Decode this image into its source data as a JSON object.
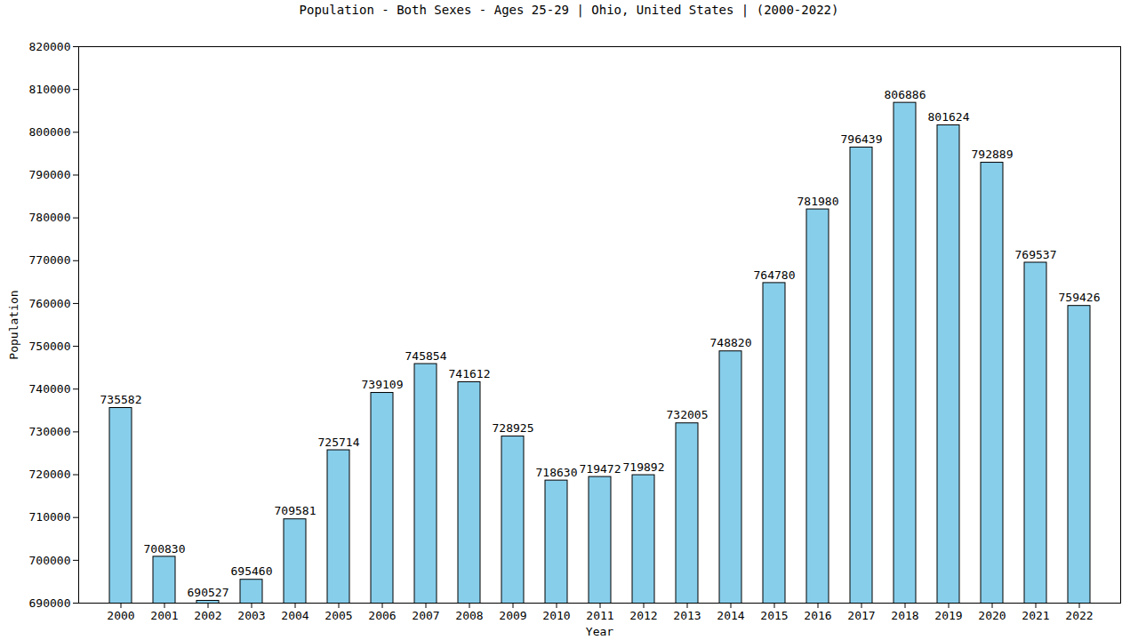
{
  "chart_data": {
    "type": "bar",
    "title": "Population - Both Sexes - Ages 25-29 | Ohio, United States |  (2000-2022)",
    "x_label": "Year",
    "y_label": "Population",
    "categories": [
      "2000",
      "2001",
      "2002",
      "2003",
      "2004",
      "2005",
      "2006",
      "2007",
      "2008",
      "2009",
      "2010",
      "2011",
      "2012",
      "2013",
      "2014",
      "2015",
      "2016",
      "2017",
      "2018",
      "2019",
      "2020",
      "2021",
      "2022"
    ],
    "values": [
      735582,
      700830,
      690527,
      695460,
      709581,
      725714,
      739109,
      745854,
      741612,
      728925,
      718630,
      719472,
      719892,
      732005,
      748820,
      764780,
      781980,
      796439,
      806886,
      801624,
      792889,
      769537,
      759426
    ],
    "color": "#87ceeb",
    "ylim": [
      690000,
      820000
    ],
    "yticks": [
      690000,
      700000,
      710000,
      720000,
      730000,
      740000,
      750000,
      760000,
      770000,
      780000,
      790000,
      800000,
      810000,
      820000
    ],
    "grid": false,
    "data_labels": true
  }
}
